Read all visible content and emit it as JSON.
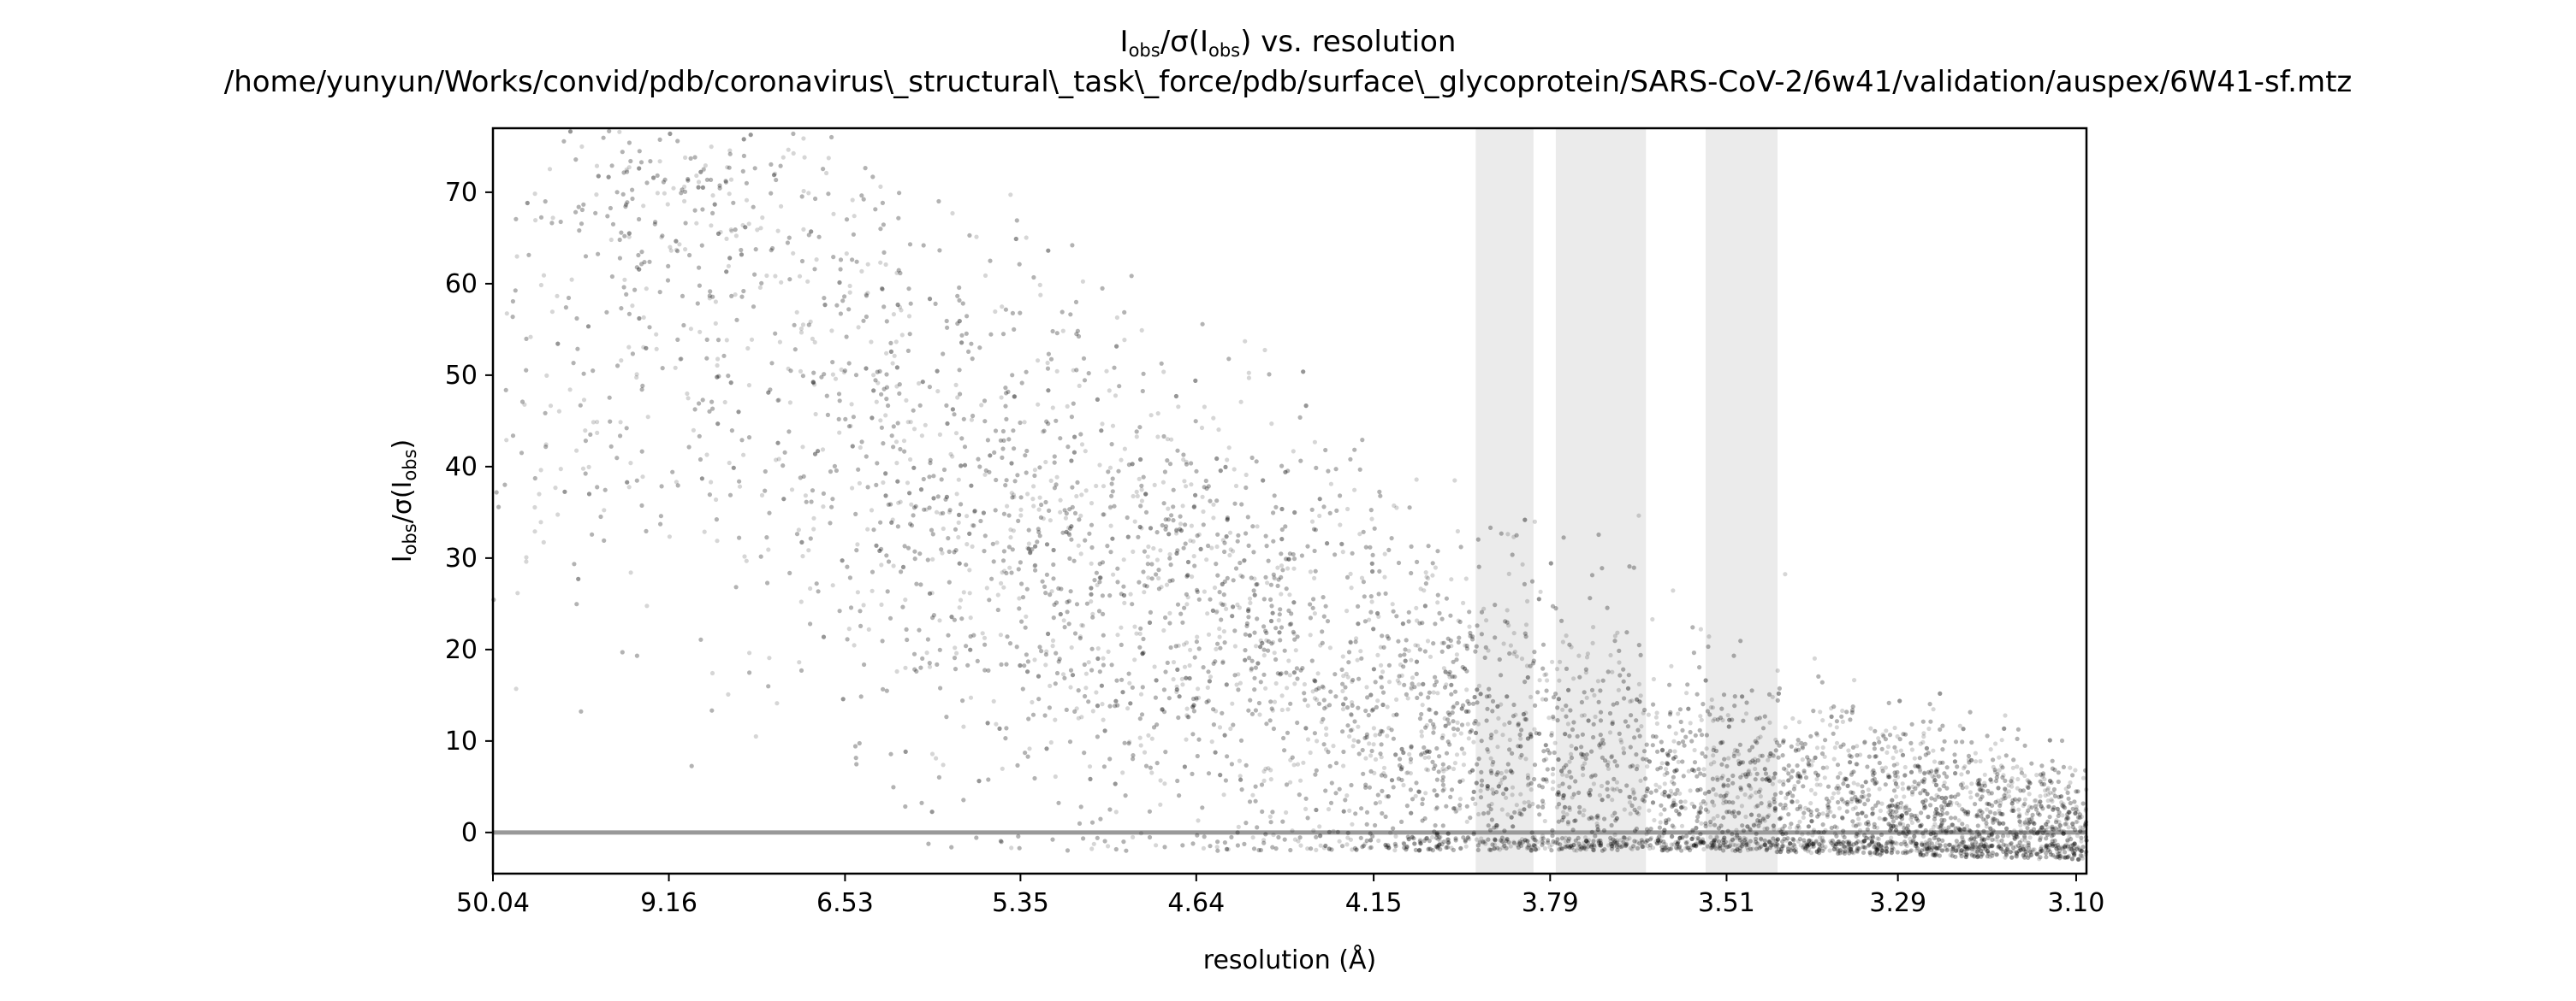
{
  "chart_data": {
    "type": "scatter",
    "title": {
      "line1_main": "I",
      "line1_sub": "obs",
      "line1_mid": "/σ(I",
      "line1_sub2": "obs",
      "line1_tail": ") vs. resolution",
      "line2": "/home/yunyun/Works/convid/pdb/coronavirus\\_structural\\_task\\_force/pdb/surface\\_glycoprotein/SARS-CoV-2/6w41/validation/auspex/6W41-sf.mtz"
    },
    "xlabel": "resolution (Å)",
    "ylabel": {
      "main": "I",
      "sub": "obs",
      "mid": "/σ(I",
      "sub2": "obs",
      "tail": ")"
    },
    "x_scale": "1/d^2 (reciprocal resolution squared)",
    "xlim": [
      50.04,
      3.09
    ],
    "ylim": [
      -4.5,
      77
    ],
    "x_ticks": [
      "50.04",
      "9.16",
      "6.53",
      "5.35",
      "4.64",
      "4.15",
      "3.79",
      "3.51",
      "3.29",
      "3.10"
    ],
    "x_tick_values": [
      50.04,
      9.16,
      6.53,
      5.35,
      4.64,
      4.15,
      3.79,
      3.51,
      3.29,
      3.1
    ],
    "y_ticks": [
      0,
      10,
      20,
      30,
      40,
      50,
      60,
      70
    ],
    "grid": false,
    "legend": "none",
    "ice_ring_bands_angstrom": [
      [
        3.93,
        3.82
      ],
      [
        3.78,
        3.63
      ],
      [
        3.54,
        3.44
      ]
    ],
    "reference_line_y": 0,
    "point_cloud_envelope": [
      {
        "resolution": 50.04,
        "y_low": -2,
        "y_high": 77,
        "y_center": 45
      },
      {
        "resolution": 9.16,
        "y_low": -2,
        "y_high": 77,
        "y_center": 62
      },
      {
        "resolution": 6.53,
        "y_low": -2,
        "y_high": 77,
        "y_center": 45
      },
      {
        "resolution": 5.35,
        "y_low": -2,
        "y_high": 70,
        "y_center": 33
      },
      {
        "resolution": 4.64,
        "y_low": -2,
        "y_high": 60,
        "y_center": 22
      },
      {
        "resolution": 4.15,
        "y_low": -2,
        "y_high": 50,
        "y_center": 12
      },
      {
        "resolution": 3.79,
        "y_low": -2,
        "y_high": 42,
        "y_center": 6
      },
      {
        "resolution": 3.51,
        "y_low": -2,
        "y_high": 32,
        "y_center": 3
      },
      {
        "resolution": 3.29,
        "y_low": -2.5,
        "y_high": 22,
        "y_center": 1.5
      },
      {
        "resolution": 3.1,
        "y_low": -3,
        "y_high": 12,
        "y_center": 0.5
      }
    ],
    "colors": {
      "points": "#000000",
      "bands": "#ebebeb",
      "zero_line": "#999999",
      "frame": "#000000"
    }
  }
}
